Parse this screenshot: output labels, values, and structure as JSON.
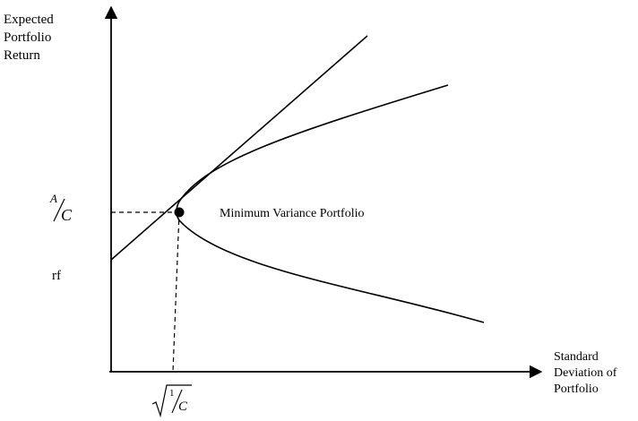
{
  "axes": {
    "y_label_lines": [
      "Expected",
      "Portfolio",
      "Return"
    ],
    "x_label_lines": [
      "Standard",
      "Deviation of",
      "Portfolio"
    ]
  },
  "annotations": {
    "min_variance": "Minimum Variance Portfolio",
    "rf": "rf",
    "ac_numerator": "A",
    "ac_denominator": "C",
    "sqrt_numerator": "1",
    "sqrt_denominator": "C"
  },
  "colors": {
    "line": "#000000",
    "background": "#ffffff"
  }
}
